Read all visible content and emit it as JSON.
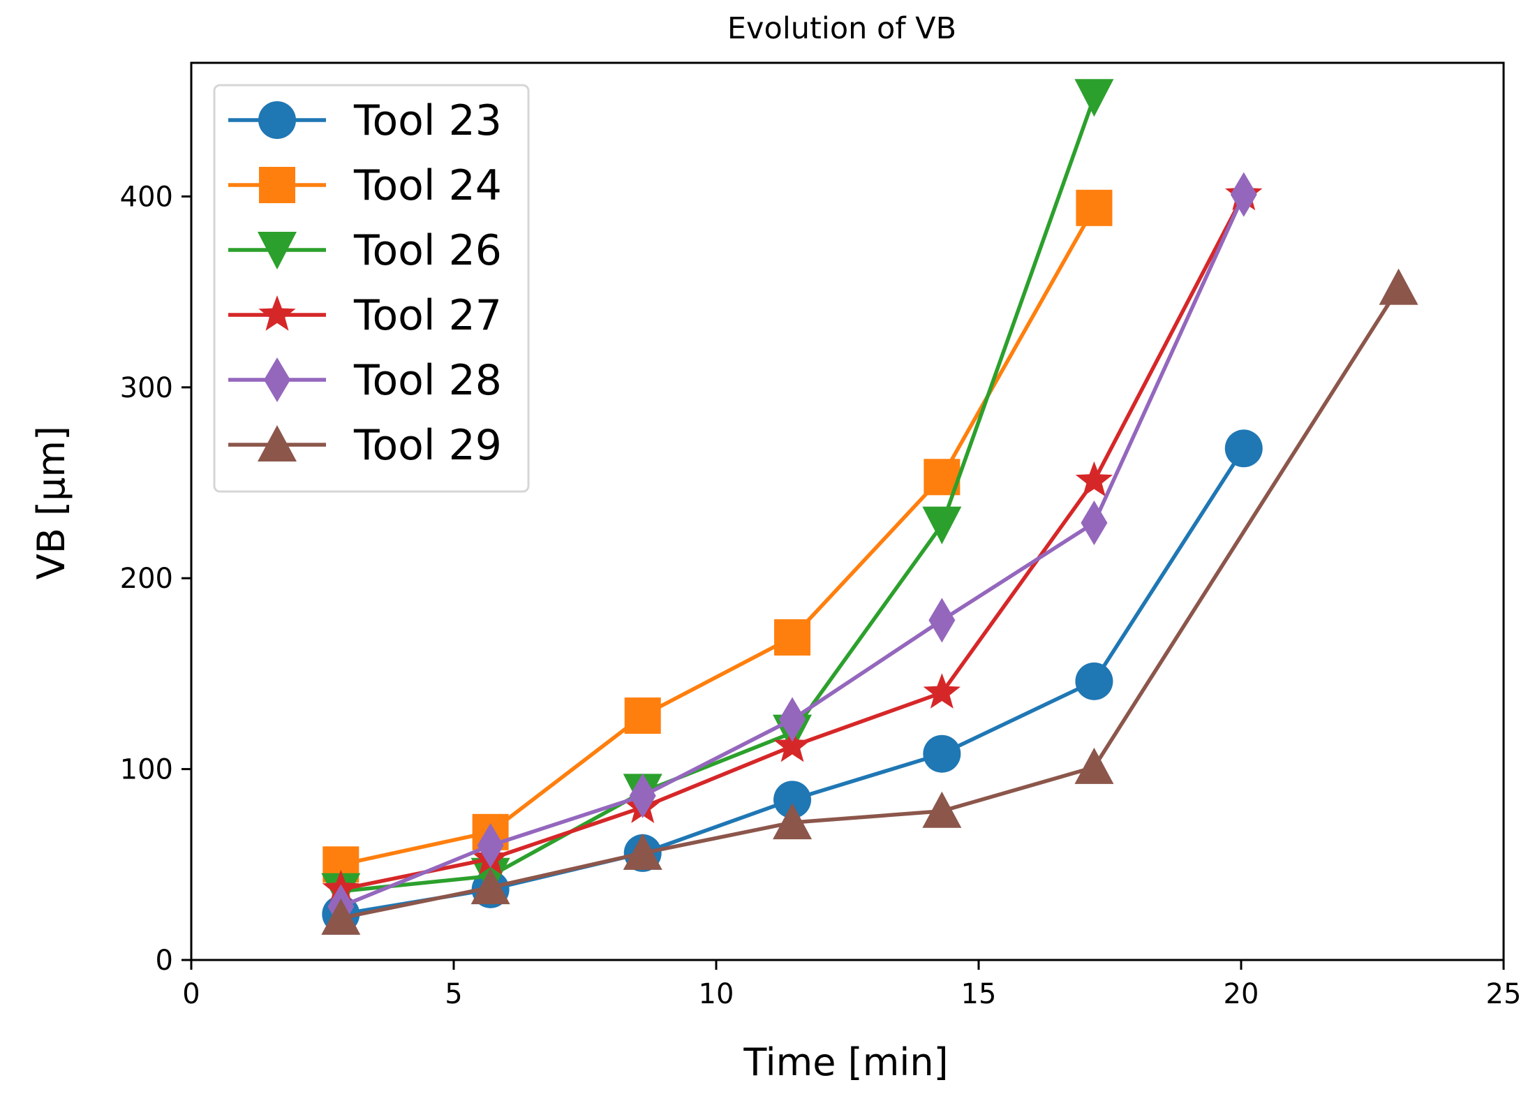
{
  "chart_data": {
    "type": "line",
    "title": "Evolution of VB",
    "xlabel": "Time [min]",
    "ylabel": "VB [µm]",
    "xlim": [
      0,
      25
    ],
    "ylim": [
      0,
      470
    ],
    "xticks": [
      0,
      5,
      10,
      15,
      20,
      25
    ],
    "yticks": [
      0,
      100,
      200,
      300,
      400
    ],
    "legend_position": "top-left",
    "grid": false,
    "series": [
      {
        "name": "Tool 23",
        "color": "#1f77b4",
        "marker": "circle",
        "points": [
          [
            2.85,
            24
          ],
          [
            5.7,
            37
          ],
          [
            8.6,
            56
          ],
          [
            11.45,
            84
          ],
          [
            14.3,
            108
          ],
          [
            17.2,
            146
          ],
          [
            20.05,
            268
          ]
        ]
      },
      {
        "name": "Tool 24",
        "color": "#ff7f0e",
        "marker": "square",
        "points": [
          [
            2.85,
            50
          ],
          [
            5.7,
            67
          ],
          [
            8.6,
            128
          ],
          [
            11.45,
            169
          ],
          [
            14.3,
            253
          ],
          [
            17.2,
            394
          ]
        ]
      },
      {
        "name": "Tool 26",
        "color": "#2ca02c",
        "marker": "triangle-down",
        "points": [
          [
            2.85,
            36
          ],
          [
            5.7,
            44
          ],
          [
            8.6,
            88
          ],
          [
            11.45,
            119
          ],
          [
            14.3,
            228
          ],
          [
            17.2,
            452
          ]
        ]
      },
      {
        "name": "Tool 27",
        "color": "#d62728",
        "marker": "star",
        "points": [
          [
            2.85,
            37
          ],
          [
            5.7,
            53
          ],
          [
            8.6,
            80
          ],
          [
            11.45,
            112
          ],
          [
            14.3,
            140
          ],
          [
            17.2,
            251
          ],
          [
            20.05,
            401
          ]
        ]
      },
      {
        "name": "Tool 28",
        "color": "#9467bd",
        "marker": "diamond",
        "points": [
          [
            2.85,
            28
          ],
          [
            5.7,
            60
          ],
          [
            8.6,
            86
          ],
          [
            11.45,
            126
          ],
          [
            14.3,
            178
          ],
          [
            17.2,
            229
          ],
          [
            20.05,
            401
          ]
        ]
      },
      {
        "name": "Tool 29",
        "color": "#8c564b",
        "marker": "triangle-up",
        "points": [
          [
            2.85,
            22
          ],
          [
            5.7,
            38
          ],
          [
            8.6,
            56
          ],
          [
            11.45,
            72
          ],
          [
            14.3,
            78
          ],
          [
            17.2,
            101
          ],
          [
            23.0,
            352
          ]
        ]
      }
    ]
  }
}
